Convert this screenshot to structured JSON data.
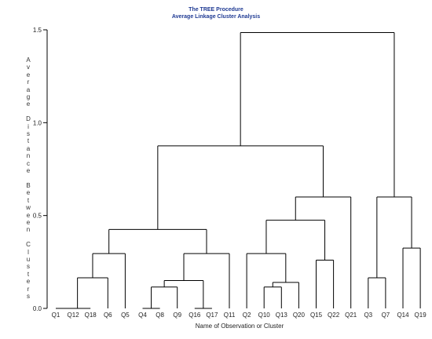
{
  "chart_data": {
    "type": "dendrogram",
    "title": "The TREE Procedure",
    "subtitle": "Average Linkage Cluster Analysis",
    "xlabel": "Name of Observation or Cluster",
    "ylabel": "Average Distance Between Clusters",
    "ylim": [
      0,
      1.5
    ],
    "yticks": [
      {
        "value": 0.0,
        "label": "0.0"
      },
      {
        "value": 0.5,
        "label": "0.5"
      },
      {
        "value": 1.0,
        "label": "1.0"
      },
      {
        "value": 1.5,
        "label": "1.5"
      }
    ],
    "leaves": [
      "Q1",
      "Q12",
      "Q18",
      "Q6",
      "Q5",
      "Q4",
      "Q8",
      "Q9",
      "Q16",
      "Q17",
      "Q11",
      "Q2",
      "Q10",
      "Q13",
      "Q20",
      "Q15",
      "Q22",
      "Q21",
      "Q3",
      "Q7",
      "Q14",
      "Q19"
    ],
    "merges": [
      {
        "id": "c1",
        "left": "Q1",
        "right": "Q12",
        "height": 0.0
      },
      {
        "id": "c2",
        "left": "c1",
        "right": "Q18",
        "height": 0.0
      },
      {
        "id": "c3",
        "left": "c2",
        "right": "Q6",
        "height": 0.165
      },
      {
        "id": "c4",
        "left": "c3",
        "right": "Q5",
        "height": 0.295
      },
      {
        "id": "c5",
        "left": "Q4",
        "right": "Q8",
        "height": 0.0
      },
      {
        "id": "c6",
        "left": "c5",
        "right": "Q9",
        "height": 0.115
      },
      {
        "id": "c7",
        "left": "Q16",
        "right": "Q17",
        "height": 0.0
      },
      {
        "id": "c8",
        "left": "c6",
        "right": "c7",
        "height": 0.15
      },
      {
        "id": "c9",
        "left": "c8",
        "right": "Q11",
        "height": 0.295
      },
      {
        "id": "c10",
        "left": "c4",
        "right": "c9",
        "height": 0.425
      },
      {
        "id": "c11",
        "left": "Q10",
        "right": "Q13",
        "height": 0.115
      },
      {
        "id": "c12",
        "left": "c11",
        "right": "Q20",
        "height": 0.14
      },
      {
        "id": "c13",
        "left": "Q2",
        "right": "c12",
        "height": 0.295
      },
      {
        "id": "c14",
        "left": "Q15",
        "right": "Q22",
        "height": 0.26
      },
      {
        "id": "c15",
        "left": "c13",
        "right": "c14",
        "height": 0.475
      },
      {
        "id": "c16",
        "left": "c15",
        "right": "Q21",
        "height": 0.6
      },
      {
        "id": "c17",
        "left": "c10",
        "right": "c16",
        "height": 0.875
      },
      {
        "id": "c18",
        "left": "Q3",
        "right": "Q7",
        "height": 0.165
      },
      {
        "id": "c19",
        "left": "Q14",
        "right": "Q19",
        "height": 0.325
      },
      {
        "id": "c20",
        "left": "c18",
        "right": "c19",
        "height": 0.6
      },
      {
        "id": "c21",
        "left": "c17",
        "right": "c20",
        "height": 1.485
      }
    ],
    "grid": false,
    "colors": {
      "title": "#1f3a93",
      "lines": "#000000"
    }
  }
}
